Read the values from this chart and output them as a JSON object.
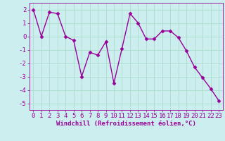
{
  "x": [
    0,
    1,
    2,
    3,
    4,
    5,
    6,
    7,
    8,
    9,
    10,
    11,
    12,
    13,
    14,
    15,
    16,
    17,
    18,
    19,
    20,
    21,
    22,
    23
  ],
  "y": [
    2,
    0,
    1.8,
    1.7,
    0,
    -0.3,
    -3,
    -1.2,
    -1.4,
    -0.4,
    -3.5,
    -0.9,
    1.7,
    1.0,
    -0.2,
    -0.2,
    0.4,
    0.4,
    -0.1,
    -1.1,
    -2.3,
    -3.1,
    -3.9,
    -4.8
  ],
  "line_color": "#990099",
  "marker_color": "#990099",
  "bg_color": "#cceeee",
  "grid_color": "#aaddcc",
  "xlabel": "Windchill (Refroidissement éolien,°C)",
  "ylim": [
    -5.5,
    2.5
  ],
  "xlim": [
    -0.5,
    23.5
  ],
  "yticks": [
    -5,
    -4,
    -3,
    -2,
    -1,
    0,
    1,
    2
  ],
  "xticks": [
    0,
    1,
    2,
    3,
    4,
    5,
    6,
    7,
    8,
    9,
    10,
    11,
    12,
    13,
    14,
    15,
    16,
    17,
    18,
    19,
    20,
    21,
    22,
    23
  ],
  "tick_color": "#990099",
  "label_color": "#990099",
  "label_fontsize": 6.5,
  "tick_fontsize": 6.5,
  "linewidth": 1.0,
  "markersize": 2.5
}
